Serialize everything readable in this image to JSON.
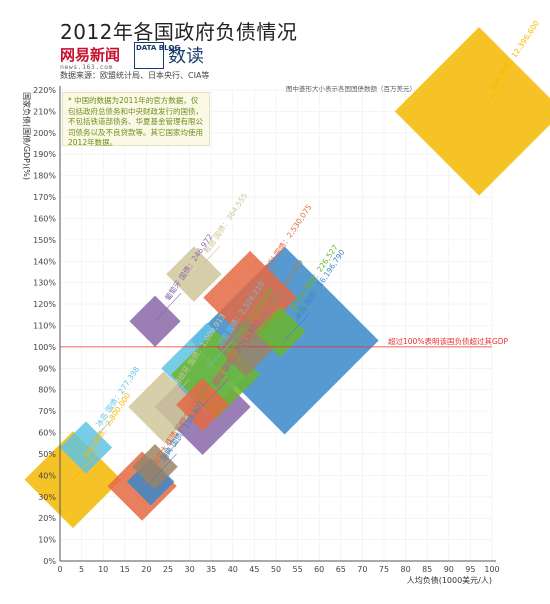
{
  "header": {
    "title": "2012年各国政府负债情况",
    "logo_text": "网易新闻",
    "logo_sub": "news.163.com",
    "datablog": "DATA BLOG",
    "shudu": "数读",
    "source": "数据来源：欧盟统计局、日本央行、CIA等"
  },
  "note": "* 中国的数据为2011年的官方数据，仅包括政府总债务和中央财政发行的国债，不包括铁道部债务、华夏基金管理有限公司债务以及不良贷款等。其它国家均使用2012年数据。",
  "size_legend": "图中菱形大小表示各国国债数额（百万美元）",
  "threshold_label": "超过100%表明该国负债超过其GDP",
  "colors": {
    "threshold": "#e8322f",
    "axis": "#555555",
    "grid": "#eeeeee"
  },
  "chart_data": {
    "type": "scatter",
    "xlabel": "人均负债(1000美元/人)",
    "ylabel": "国家负债(国债/GDP)(%)",
    "xlim": [
      0,
      100
    ],
    "ylim": [
      0,
      220
    ],
    "x_ticks": [
      "0",
      "5",
      "10",
      "15",
      "20",
      "25",
      "30",
      "35",
      "40",
      "45",
      "50",
      "55",
      "60",
      "65",
      "70",
      "75",
      "80",
      "85",
      "90",
      "95",
      "100"
    ],
    "y_ticks": [
      "0%",
      "10%",
      "20%",
      "30%",
      "40%",
      "50%",
      "60%",
      "70%",
      "80%",
      "90%",
      "100%",
      "110%",
      "120%",
      "130%",
      "140%",
      "150%",
      "160%",
      "170%",
      "180%",
      "190%",
      "200%",
      "210%",
      "220%"
    ],
    "threshold": 100,
    "points": [
      {
        "name": "日本",
        "debt_label": "国债：12,396,600",
        "x": 97,
        "y": 210,
        "color": "#f5b800"
      },
      {
        "name": "美国",
        "debt_label": "国债：16,196,790",
        "x": 52,
        "y": 103,
        "color": "#3a87c9"
      },
      {
        "name": "意大利",
        "debt_label": "国债：2,530,075",
        "x": 44,
        "y": 123,
        "color": "#e46a43"
      },
      {
        "name": "希腊",
        "debt_label": "国债：364,555",
        "x": 31,
        "y": 134,
        "color": "#cfc79a"
      },
      {
        "name": "爱尔兰",
        "debt_label": "国债：226,527",
        "x": 51,
        "y": 107,
        "color": "#6bb52e"
      },
      {
        "name": "葡萄牙",
        "debt_label": "国债：246,972",
        "x": 22,
        "y": 112,
        "color": "#8a67a8"
      },
      {
        "name": "英国",
        "debt_label": "国债：2,165,869",
        "x": 36,
        "y": 87,
        "color": "#6bb52e"
      },
      {
        "name": "比利时",
        "debt_label": "国债：490,509",
        "x": 43,
        "y": 100,
        "color": "#9a8466"
      },
      {
        "name": "西班牙",
        "debt_label": "国债：1,009,913",
        "x": 24,
        "y": 72,
        "color": "#cfc79a"
      },
      {
        "name": "法国",
        "debt_label": "国债：2,326,210",
        "x": 34,
        "y": 90,
        "color": "#5fc3e4"
      },
      {
        "name": "德国",
        "debt_label": "国债：2,745,580",
        "x": 33,
        "y": 72,
        "color": "#8a67a8"
      },
      {
        "name": "奥地利",
        "debt_label": "国债：289,330",
        "x": 33,
        "y": 73,
        "color": "#e46a43"
      },
      {
        "name": "荷兰",
        "debt_label": "国债：121,316",
        "x": 22,
        "y": 44,
        "color": "#9a8466"
      },
      {
        "name": "加拿大",
        "debt_label": "国债：923,760",
        "x": 19,
        "y": 35,
        "color": "#e46a43"
      },
      {
        "name": "瑞典",
        "debt_label": "国债：158,801",
        "x": 21,
        "y": 37,
        "color": "#3a87c9"
      },
      {
        "name": "冰岛",
        "debt_label": "国债：277,398",
        "x": 6,
        "y": 53,
        "color": "#5fc3e4"
      },
      {
        "name": "中国",
        "debt_label": "国债：2,800,000",
        "x": 3,
        "y": 38,
        "color": "#f5b800"
      }
    ]
  }
}
